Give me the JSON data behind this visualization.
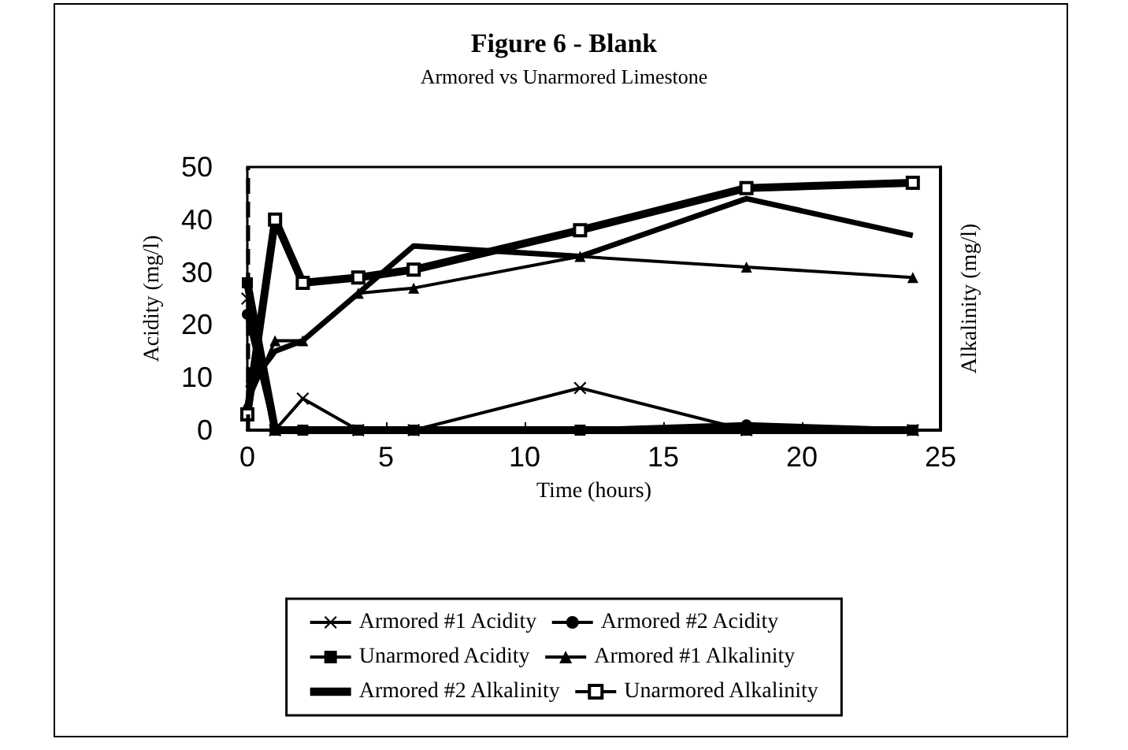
{
  "chart_data": {
    "type": "line",
    "title": "Figure 6 - Blank",
    "subtitle": "Armored vs Unarmored Limestone",
    "xlabel": "Time (hours)",
    "ylabel": "Acidity (mg/l)",
    "y2label": "Alkalinity (mg/l)",
    "x": [
      0,
      1,
      2,
      4,
      6,
      12,
      18,
      24
    ],
    "series": [
      {
        "name": "Armored #1 Acidity",
        "color": "#000000",
        "marker": "cross",
        "values": [
          25,
          0,
          6,
          0,
          0,
          8,
          0,
          0
        ]
      },
      {
        "name": "Armored #2 Acidity",
        "color": "#000000",
        "marker": "circle",
        "values": [
          22,
          0,
          0,
          0,
          0,
          0,
          1,
          0
        ]
      },
      {
        "name": "Unarmored Acidity",
        "color": "#000000",
        "marker": "square",
        "values": [
          28,
          0,
          0,
          0,
          0,
          0,
          0,
          0
        ]
      },
      {
        "name": "Armored #1 Alkalinity",
        "color": "#000000",
        "marker": "triangle",
        "values": [
          5,
          17,
          17,
          26,
          27,
          33,
          31,
          29
        ]
      },
      {
        "name": "Armored #2 Alkalinity",
        "color": "#000000",
        "marker": "none",
        "values": [
          8,
          15,
          17,
          26,
          35,
          33,
          44,
          37
        ]
      },
      {
        "name": "Unarmored Alkalinity",
        "color": "#000000",
        "marker": "square_open",
        "values": [
          3,
          40,
          28,
          29,
          30.5,
          38,
          46,
          47
        ]
      }
    ],
    "xlim": [
      0,
      25
    ],
    "xticks": [
      0,
      5,
      10,
      15,
      20,
      25
    ],
    "ylim": [
      0,
      50
    ],
    "yticks": [
      0,
      10,
      20,
      30,
      40,
      50
    ],
    "ref_lines": [
      {
        "axis": "x",
        "value": 0,
        "label": null,
        "color": "#000000",
        "line_style": "dashed"
      }
    ],
    "grid": false,
    "legend": "bottom"
  }
}
